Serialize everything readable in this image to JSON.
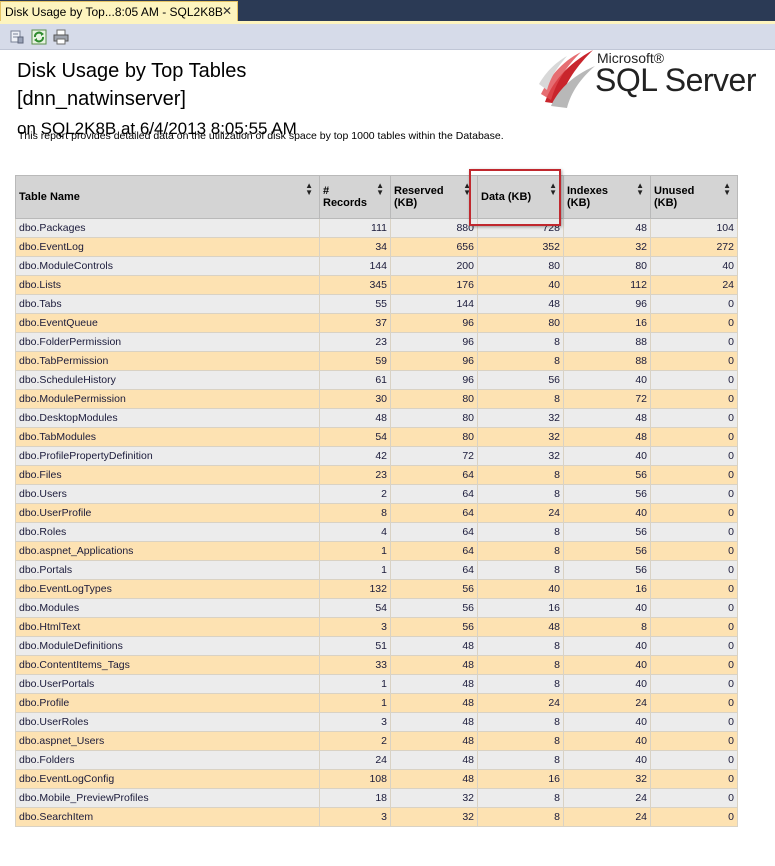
{
  "tab": {
    "title": "Disk Usage by Top...8:05 AM - SQL2K8B",
    "close_glyph": "✕"
  },
  "toolbar": {
    "icons": [
      "document-map-icon",
      "refresh-icon",
      "print-icon"
    ]
  },
  "report": {
    "title": "Disk Usage by Top Tables",
    "database": "[dnn_natwinserver]",
    "server_time": "on SQL2K8B at 6/4/2013 8:05:55 AM",
    "description": "This report provides detailed data on the utilization of disk space by top 1000 tables within the Database."
  },
  "logo": {
    "microsoft": "Microsoft®",
    "product": "SQL Server"
  },
  "colors": {
    "row_gray": "#ececec",
    "row_orange": "#fde2b2",
    "header": "#d4d4d4",
    "highlight": "#c0282e"
  },
  "table": {
    "columns": [
      "Table Name",
      "# Records",
      "Reserved (KB)",
      "Data (KB)",
      "Indexes (KB)",
      "Unused (KB)"
    ],
    "sort_glyph": "▲▼",
    "rows": [
      [
        "dbo.Packages",
        "111",
        "880",
        "728",
        "48",
        "104"
      ],
      [
        "dbo.EventLog",
        "34",
        "656",
        "352",
        "32",
        "272"
      ],
      [
        "dbo.ModuleControls",
        "144",
        "200",
        "80",
        "80",
        "40"
      ],
      [
        "dbo.Lists",
        "345",
        "176",
        "40",
        "112",
        "24"
      ],
      [
        "dbo.Tabs",
        "55",
        "144",
        "48",
        "96",
        "0"
      ],
      [
        "dbo.EventQueue",
        "37",
        "96",
        "80",
        "16",
        "0"
      ],
      [
        "dbo.FolderPermission",
        "23",
        "96",
        "8",
        "88",
        "0"
      ],
      [
        "dbo.TabPermission",
        "59",
        "96",
        "8",
        "88",
        "0"
      ],
      [
        "dbo.ScheduleHistory",
        "61",
        "96",
        "56",
        "40",
        "0"
      ],
      [
        "dbo.ModulePermission",
        "30",
        "80",
        "8",
        "72",
        "0"
      ],
      [
        "dbo.DesktopModules",
        "48",
        "80",
        "32",
        "48",
        "0"
      ],
      [
        "dbo.TabModules",
        "54",
        "80",
        "32",
        "48",
        "0"
      ],
      [
        "dbo.ProfilePropertyDefinition",
        "42",
        "72",
        "32",
        "40",
        "0"
      ],
      [
        "dbo.Files",
        "23",
        "64",
        "8",
        "56",
        "0"
      ],
      [
        "dbo.Users",
        "2",
        "64",
        "8",
        "56",
        "0"
      ],
      [
        "dbo.UserProfile",
        "8",
        "64",
        "24",
        "40",
        "0"
      ],
      [
        "dbo.Roles",
        "4",
        "64",
        "8",
        "56",
        "0"
      ],
      [
        "dbo.aspnet_Applications",
        "1",
        "64",
        "8",
        "56",
        "0"
      ],
      [
        "dbo.Portals",
        "1",
        "64",
        "8",
        "56",
        "0"
      ],
      [
        "dbo.EventLogTypes",
        "132",
        "56",
        "40",
        "16",
        "0"
      ],
      [
        "dbo.Modules",
        "54",
        "56",
        "16",
        "40",
        "0"
      ],
      [
        "dbo.HtmlText",
        "3",
        "56",
        "48",
        "8",
        "0"
      ],
      [
        "dbo.ModuleDefinitions",
        "51",
        "48",
        "8",
        "40",
        "0"
      ],
      [
        "dbo.ContentItems_Tags",
        "33",
        "48",
        "8",
        "40",
        "0"
      ],
      [
        "dbo.UserPortals",
        "1",
        "48",
        "8",
        "40",
        "0"
      ],
      [
        "dbo.Profile",
        "1",
        "48",
        "24",
        "24",
        "0"
      ],
      [
        "dbo.UserRoles",
        "3",
        "48",
        "8",
        "40",
        "0"
      ],
      [
        "dbo.aspnet_Users",
        "2",
        "48",
        "8",
        "40",
        "0"
      ],
      [
        "dbo.Folders",
        "24",
        "48",
        "8",
        "40",
        "0"
      ],
      [
        "dbo.EventLogConfig",
        "108",
        "48",
        "16",
        "32",
        "0"
      ],
      [
        "dbo.Mobile_PreviewProfiles",
        "18",
        "32",
        "8",
        "24",
        "0"
      ],
      [
        "dbo.SearchItem",
        "3",
        "32",
        "8",
        "24",
        "0"
      ]
    ]
  }
}
